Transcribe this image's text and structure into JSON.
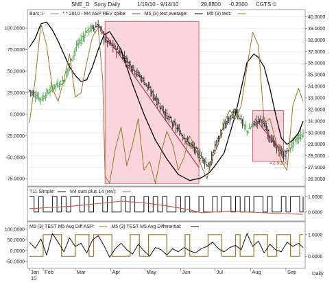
{
  "header": {
    "symbol": "SNE_D",
    "name": "Sony Daily",
    "range": "1/19/10 - 9/14/10",
    "price": "29.8800",
    "change": "-0.2500",
    "copyright": "CGTS ©"
  },
  "colors": {
    "price_bars": "#1a1a1a",
    "green_bars": "#3a9a3a",
    "avg_line": "#000000",
    "test_line": "#9a7425",
    "trend_line": "#b5304f",
    "highlight_fill": "#f3c7cf",
    "highlight_stroke": "#c8485f",
    "sum_line": "#d0503a",
    "label_red": "#c0392b"
  },
  "chart_data": [
    {
      "type": "line",
      "panel": "main",
      "legend": [
        {
          "key": "bars",
          "label": "Bars: I-"
        },
        {
          "key": "spike",
          "label": "* * 2010 - M4 ASP REV spike:"
        },
        {
          "key": "avg",
          "label": "M5 (3) test average:"
        },
        {
          "key": "test",
          "label": "M5 (3) test:"
        }
      ],
      "left_axis": {
        "ylim": [
          -82,
          120
        ],
        "ticks": [
          "100.0000",
          "75.0000",
          "50.0000",
          "25.0000",
          "0.0000",
          "-25.0000",
          "-50.0000",
          "-75.0000"
        ],
        "tick_values": [
          100,
          75,
          50,
          25,
          0,
          -25,
          -50,
          -75
        ]
      },
      "right_axis": {
        "ylim": [
          25.5,
          40.5
        ],
        "ticks": [
          "40.0000",
          "39.0000",
          "38.0000",
          "37.0000",
          "36.0000",
          "35.0000",
          "34.0000",
          "33.0000",
          "32.0000",
          "31.0000",
          "30.0000",
          "29.0000",
          "28.0000",
          "27.0000",
          "26.0000"
        ],
        "tick_values": [
          40,
          39,
          38,
          37,
          36,
          35,
          34,
          33,
          32,
          31,
          30,
          29,
          28,
          27,
          26
        ]
      },
      "x": {
        "days": 240,
        "months": [
          "Jan",
          "Feb",
          "Mar",
          "Apr",
          "May",
          "Jun",
          "Jul",
          "Aug",
          "Sep"
        ],
        "month_days": [
          0,
          12,
          40,
          71,
          101,
          132,
          162,
          193,
          224
        ],
        "year_label": "10",
        "period_label": "Daily"
      },
      "price": {
        "days": [
          0,
          10,
          20,
          30,
          40,
          50,
          60,
          66,
          80,
          100,
          120,
          140,
          150,
          157,
          162,
          170,
          180,
          190,
          196,
          202,
          210,
          215,
          222,
          232,
          239
        ],
        "close": [
          33.6,
          32.9,
          33.9,
          34.5,
          37.3,
          38.8,
          39.3,
          38.0,
          36.8,
          34.4,
          31.4,
          29.0,
          27.9,
          27.0,
          28.9,
          30.6,
          31.9,
          30.1,
          30.8,
          31.2,
          29.6,
          28.8,
          28.0,
          29.4,
          29.9
        ]
      },
      "series": [
        {
          "key": "avg",
          "axis": "left",
          "days": [
            0,
            5,
            10,
            15,
            20,
            25,
            30,
            35,
            40,
            45,
            50,
            55,
            60,
            65,
            70,
            80,
            90,
            100,
            110,
            120,
            130,
            140,
            150,
            157,
            162,
            170,
            180,
            190,
            196,
            200,
            205,
            210,
            215,
            220,
            225,
            230,
            235,
            239
          ],
          "values": [
            78,
            88,
            105,
            107,
            98,
            85,
            70,
            55,
            45,
            38,
            40,
            55,
            75,
            92,
            96,
            75,
            35,
            0,
            -30,
            -52,
            -70,
            -77,
            -74,
            -68,
            -60,
            -45,
            0,
            60,
            70,
            66,
            55,
            30,
            0,
            -28,
            -35,
            -30,
            -22,
            -8
          ]
        },
        {
          "key": "test",
          "axis": "left",
          "days": [
            0,
            5,
            10,
            15,
            20,
            25,
            30,
            35,
            40,
            45,
            50,
            55,
            60,
            64,
            66,
            70,
            75,
            80,
            85,
            90,
            95,
            100,
            105,
            110,
            115,
            120,
            125,
            130,
            135,
            140,
            145,
            150,
            155,
            160,
            165,
            170,
            175,
            180,
            185,
            190,
            195,
            200,
            205,
            210,
            215,
            220,
            225,
            230,
            235,
            239
          ],
          "values": [
            -10,
            40,
            105,
            80,
            30,
            15,
            40,
            70,
            20,
            25,
            60,
            90,
            100,
            40,
            -72,
            -80,
            -40,
            -15,
            -60,
            -35,
            -5,
            -65,
            -55,
            -80,
            -45,
            -20,
            -35,
            -65,
            -50,
            -25,
            -40,
            -60,
            -75,
            -50,
            -35,
            -10,
            5,
            -5,
            10,
            55,
            95,
            80,
            -10,
            -5,
            -30,
            -55,
            -65,
            10,
            30,
            15
          ]
        },
        {
          "key": "trend",
          "axis": "right",
          "days": [
            60,
            148
          ],
          "values": [
            39.3,
            27.0
          ]
        },
        {
          "key": "trend2",
          "axis": "right",
          "days": [
            197,
            221
          ],
          "values": [
            31.2,
            28.3
          ]
        }
      ],
      "highlights": [
        {
          "day_start": 66,
          "day_end": 148,
          "y_top": 39.6,
          "y_bottom": 25.6
        },
        {
          "day_start": 195,
          "day_end": 222,
          "y_top": 31.9,
          "y_bottom": 27.5
        }
      ],
      "annotations": [
        {
          "label": "+2.9200",
          "day": 212,
          "value": 27.7
        }
      ]
    },
    {
      "type": "line",
      "panel": "indicator1",
      "legend": [
        {
          "key": "t11",
          "label": "T11 Simple:"
        },
        {
          "key": "m4sum",
          "label": "M4 sum plus 14 (rev):"
        }
      ],
      "right_axis": {
        "ylim": [
          -0.5,
          1.5
        ],
        "ticks": [
          "1.0000",
          "0.0000"
        ],
        "tick_values": [
          1,
          0
        ]
      },
      "series": [
        {
          "key": "t11",
          "days": [
            0,
            4,
            8,
            12,
            16,
            20,
            24,
            28,
            32,
            36,
            40,
            44,
            48,
            52,
            56,
            60,
            64,
            68,
            72,
            76,
            80,
            84,
            88,
            92,
            96,
            100,
            104,
            108,
            112,
            116,
            120,
            124,
            128,
            132,
            136,
            140,
            144,
            148,
            152,
            156,
            160,
            164,
            168,
            172,
            176,
            180,
            184,
            188,
            192,
            196,
            200,
            204,
            208,
            212,
            216,
            220,
            224,
            228,
            232,
            236,
            239
          ],
          "values": [
            1,
            0,
            1,
            0,
            0,
            1,
            0,
            1,
            0,
            1,
            1,
            0,
            1,
            0,
            1,
            1,
            0,
            1,
            0,
            0,
            1,
            0,
            1,
            0,
            0,
            1,
            0,
            1,
            0,
            1,
            0,
            0,
            1,
            0,
            1,
            0,
            0,
            1,
            0,
            0,
            1,
            0,
            1,
            1,
            0,
            1,
            0,
            1,
            0,
            1,
            1,
            0,
            1,
            0,
            0,
            1,
            0,
            1,
            1,
            0,
            1
          ]
        },
        {
          "key": "m4sum",
          "days": [
            0,
            20,
            40,
            60,
            80,
            100,
            120,
            140,
            150,
            160,
            175,
            190,
            205,
            220,
            239
          ],
          "values": [
            0.22,
            0.3,
            0.4,
            0.55,
            0.7,
            0.6,
            0.4,
            0.15,
            -0.05,
            0.0,
            0.05,
            0.0,
            -0.05,
            -0.1,
            -0.15
          ]
        }
      ]
    },
    {
      "type": "line",
      "panel": "indicator2",
      "legend": [
        {
          "key": "asp",
          "label": "M5 (3) TEST M5 Avg Diff ASP:"
        },
        {
          "key": "diff",
          "label": "M5 (3) TEST M5 Avg Differential:"
        }
      ],
      "left_axis": {
        "ylim": [
          -75,
          125
        ],
        "ticks": [
          "100.0000",
          "50.0000",
          "0.0000",
          "-50.0000"
        ],
        "tick_values": [
          100,
          50,
          0,
          -50
        ]
      },
      "right_axis": {
        "ylim": [
          -0.5,
          1.5
        ],
        "ticks": [
          "1.0000",
          "0.0000"
        ],
        "tick_values": [
          1,
          0
        ]
      },
      "series": [
        {
          "key": "asp",
          "axis": "right",
          "days": [
            0,
            8,
            12,
            20,
            28,
            36,
            40,
            48,
            52,
            56,
            64,
            72,
            80,
            88,
            96,
            100,
            104,
            112,
            120,
            128,
            136,
            140,
            148,
            156,
            160,
            168,
            176,
            180,
            184,
            192,
            196,
            200,
            208,
            212,
            216,
            224,
            228,
            236,
            239
          ],
          "values": [
            0,
            0,
            1,
            1,
            0,
            0,
            1,
            1,
            0,
            1,
            1,
            0,
            0,
            1,
            0,
            0,
            1,
            1,
            0,
            0,
            1,
            0,
            0,
            1,
            1,
            0,
            0,
            1,
            0,
            0,
            1,
            1,
            0,
            0,
            1,
            1,
            0,
            1,
            1
          ]
        },
        {
          "key": "diff",
          "axis": "left",
          "days": [
            0,
            5,
            10,
            15,
            20,
            25,
            30,
            35,
            40,
            45,
            50,
            55,
            60,
            65,
            70,
            75,
            80,
            85,
            90,
            95,
            100,
            105,
            110,
            115,
            120,
            125,
            130,
            135,
            140,
            145,
            150,
            155,
            160,
            165,
            170,
            175,
            180,
            185,
            190,
            195,
            200,
            205,
            210,
            215,
            220,
            225,
            230,
            235,
            239
          ],
          "values": [
            40,
            12,
            55,
            -20,
            80,
            40,
            -5,
            60,
            20,
            35,
            -10,
            50,
            70,
            25,
            -30,
            10,
            35,
            5,
            -15,
            30,
            0,
            -25,
            15,
            5,
            -20,
            10,
            -5,
            15,
            0,
            -10,
            10,
            20,
            40,
            10,
            -5,
            15,
            25,
            5,
            80,
            20,
            45,
            -10,
            30,
            5,
            -5,
            40,
            20,
            35,
            15
          ]
        }
      ]
    }
  ]
}
